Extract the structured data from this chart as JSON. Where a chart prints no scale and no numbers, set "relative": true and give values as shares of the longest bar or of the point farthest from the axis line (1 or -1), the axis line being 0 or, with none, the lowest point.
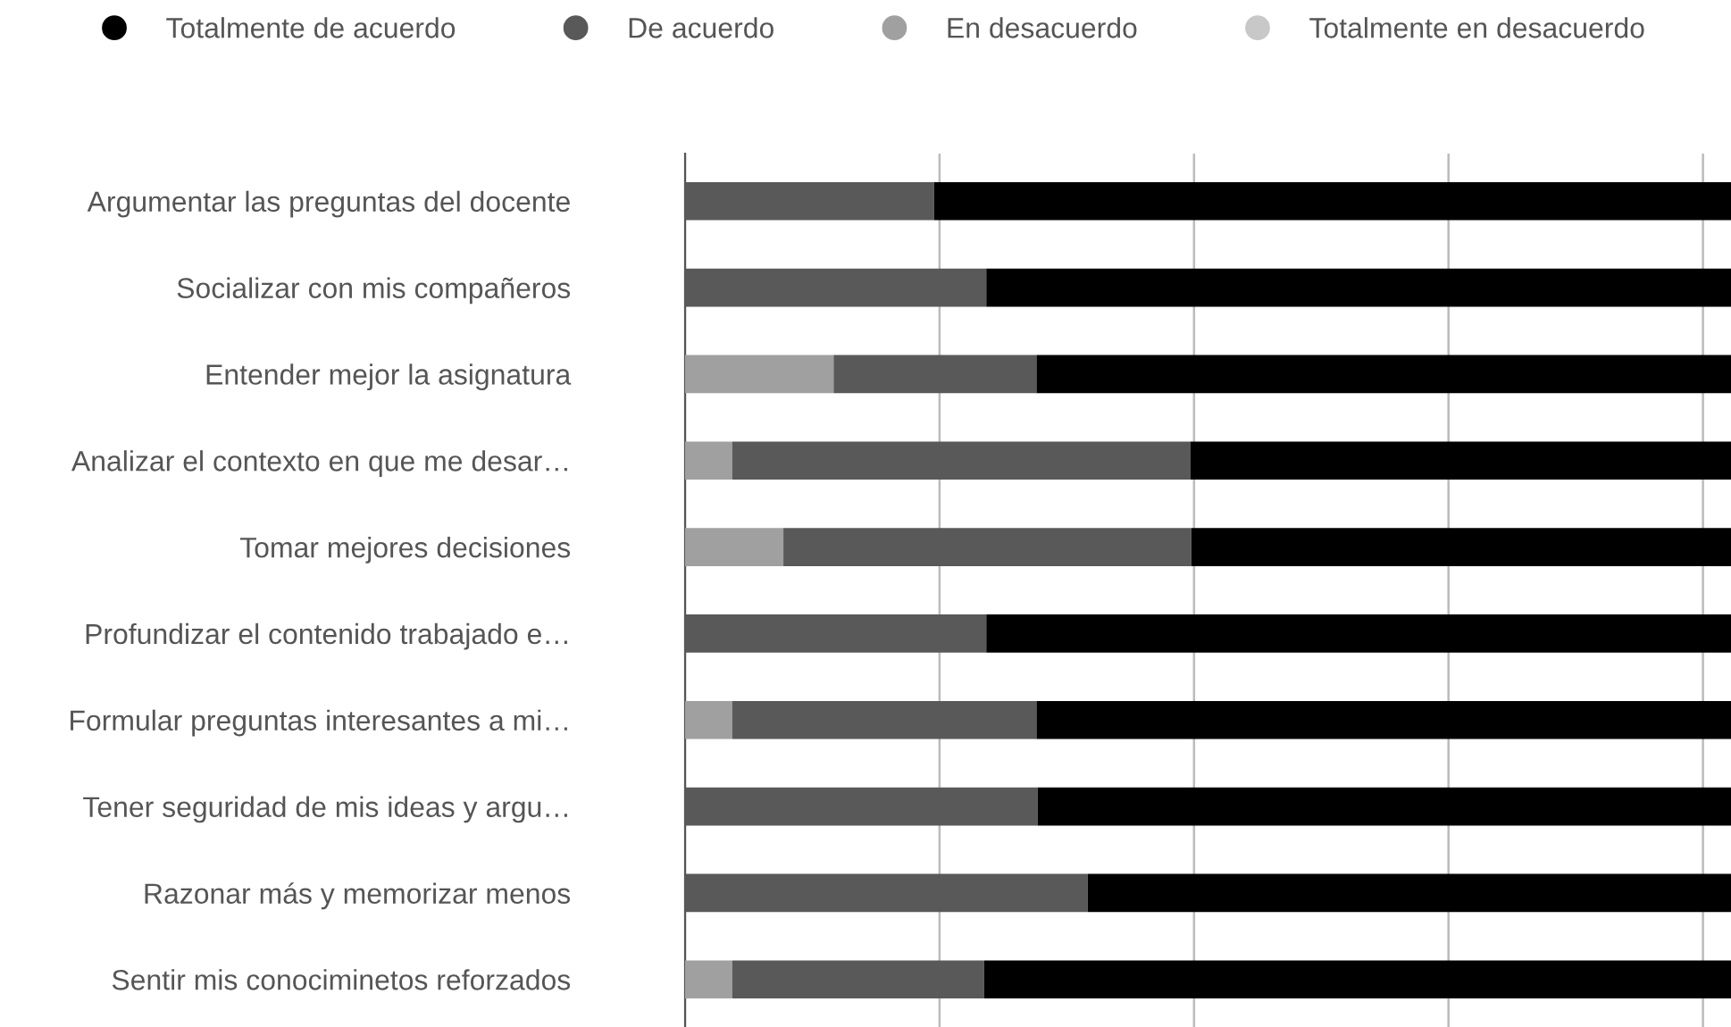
{
  "chart_data": {
    "type": "bar",
    "orientation": "horizontal",
    "stacked": true,
    "relative": true,
    "grid": "x",
    "legend": "top",
    "categories": [
      "Argumentar las preguntas del docente",
      "Socializar con mis compañeros",
      "Entender mejor la asignatura",
      "Analizar el contexto en que me desar…",
      "Tomar mejores decisiones",
      "Profundizar el contenido trabajado e…",
      "Formular preguntas interesantes a mi…",
      "Tener seguridad de mis ideas y argu…",
      "Razonar más y memorizar menos",
      "Sentir mis conociminetos reforzados"
    ],
    "series": [
      {
        "name": "Totalmente en desacuerdo",
        "color": "#c8c8c8",
        "values": [
          0,
          0,
          0,
          0,
          0,
          0,
          0,
          0,
          0,
          0
        ]
      },
      {
        "name": "En desacuerdo",
        "color": "#a0a0a0",
        "values": [
          0,
          0,
          0.142,
          0.045,
          0.094,
          0,
          0.045,
          0,
          0,
          0.045
        ]
      },
      {
        "name": "De acuerdo",
        "color": "#595959",
        "values": [
          0.238,
          0.288,
          0.194,
          0.438,
          0.39,
          0.288,
          0.291,
          0.337,
          0.385,
          0.241
        ]
      },
      {
        "name": "Totalmente de acuerdo",
        "color": "#000000",
        "values": [
          0.762,
          0.712,
          0.664,
          0.517,
          0.516,
          0.712,
          0.664,
          0.663,
          0.615,
          0.714
        ]
      }
    ]
  }
}
